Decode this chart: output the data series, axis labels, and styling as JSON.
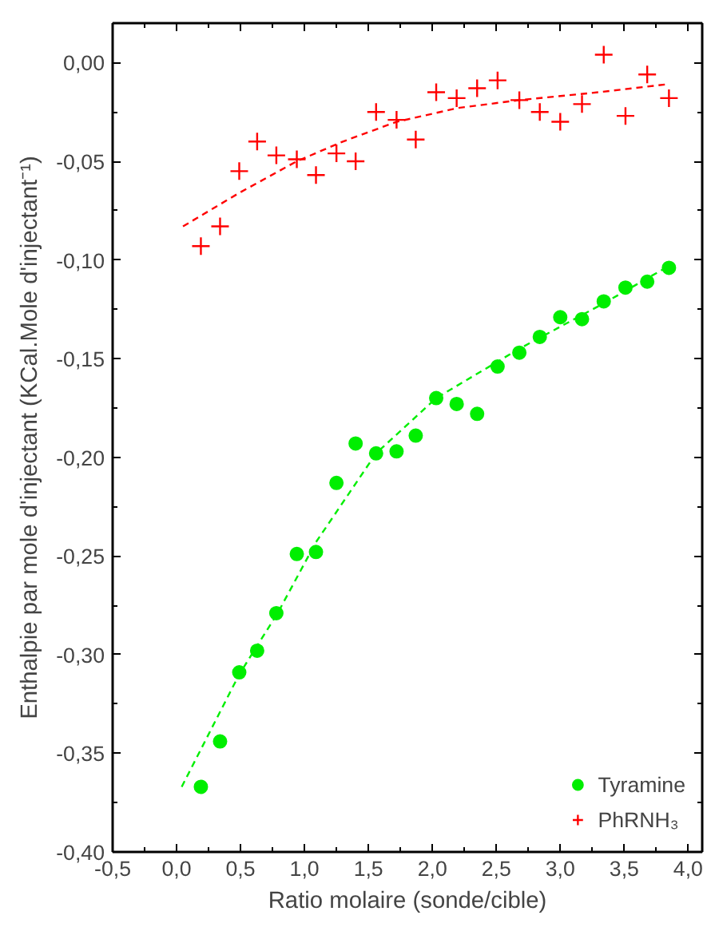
{
  "chart_data": {
    "type": "scatter",
    "xlabel": "Ratio molaire (sonde/cible)",
    "ylabel": "Enthalpie par mole d'injectant (KCal.Mole d'injectant⁻¹)",
    "x": [
      0.19,
      0.34,
      0.49,
      0.63,
      0.78,
      0.94,
      1.09,
      1.25,
      1.4,
      1.56,
      1.72,
      1.87,
      2.03,
      2.19,
      2.35,
      2.51,
      2.68,
      2.84,
      3.0,
      3.17,
      3.34,
      3.51,
      3.68,
      3.85
    ],
    "series": [
      {
        "name": "Tyramine",
        "color": "#00ee00",
        "marker": "circle",
        "values": [
          -0.367,
          -0.344,
          -0.309,
          -0.298,
          -0.279,
          -0.249,
          -0.248,
          -0.213,
          -0.193,
          -0.198,
          -0.197,
          -0.189,
          -0.17,
          -0.173,
          -0.178,
          -0.154,
          -0.147,
          -0.139,
          -0.129,
          -0.13,
          -0.121,
          -0.114,
          -0.111,
          -0.104
        ]
      },
      {
        "name": "PhRNH₃",
        "color": "#ff0000",
        "marker": "cross",
        "values": [
          -0.093,
          -0.083,
          -0.055,
          -0.04,
          -0.047,
          -0.049,
          -0.057,
          -0.046,
          -0.05,
          -0.025,
          -0.029,
          -0.039,
          -0.015,
          -0.018,
          -0.013,
          -0.009,
          -0.019,
          -0.025,
          -0.03,
          -0.021,
          0.004,
          -0.027,
          -0.006,
          -0.018
        ]
      },
      {
        "type": "line",
        "color": "#00ee00",
        "line_style": "dashed",
        "x": [
          0.04,
          0.49,
          0.79,
          1.09,
          1.56,
          2.03,
          2.68,
          3.34,
          3.85
        ],
        "values": [
          -0.367,
          -0.31,
          -0.279,
          -0.243,
          -0.198,
          -0.17,
          -0.145,
          -0.122,
          -0.103
        ]
      },
      {
        "type": "line",
        "color": "#ff0000",
        "line_style": "dashed",
        "x": [
          0.05,
          0.49,
          0.94,
          1.3,
          1.72,
          2.2,
          2.68,
          3.3,
          3.83
        ],
        "values": [
          -0.083,
          -0.066,
          -0.05,
          -0.04,
          -0.03,
          -0.023,
          -0.019,
          -0.015,
          -0.011
        ]
      }
    ],
    "xlim": [
      -0.5,
      4.11
    ],
    "ylim": [
      -0.4,
      0.02
    ],
    "xticks": [
      {
        "value": -0.5,
        "label": "-0,5"
      },
      {
        "value": 0,
        "label": "0,0"
      },
      {
        "value": 0.5,
        "label": "0,5"
      },
      {
        "value": 1,
        "label": "1,0"
      },
      {
        "value": 1.5,
        "label": "1,5"
      },
      {
        "value": 2,
        "label": "2,0"
      },
      {
        "value": 2.5,
        "label": "2,5"
      },
      {
        "value": 3,
        "label": "3,0"
      },
      {
        "value": 3.5,
        "label": "3,5"
      },
      {
        "value": 4,
        "label": "4,0"
      }
    ],
    "yticks": [
      {
        "value": -0.4,
        "label": "-0,40"
      },
      {
        "value": -0.35,
        "label": "-0,35"
      },
      {
        "value": -0.3,
        "label": "-0,30"
      },
      {
        "value": -0.25,
        "label": "-0,25"
      },
      {
        "value": -0.2,
        "label": "-0,20"
      },
      {
        "value": -0.15,
        "label": "-0,15"
      },
      {
        "value": -0.1,
        "label": "-0,10"
      },
      {
        "value": -0.05,
        "label": "-0,05"
      },
      {
        "value": 0,
        "label": "0,00"
      }
    ],
    "grid": false,
    "legend": "bottom right"
  }
}
